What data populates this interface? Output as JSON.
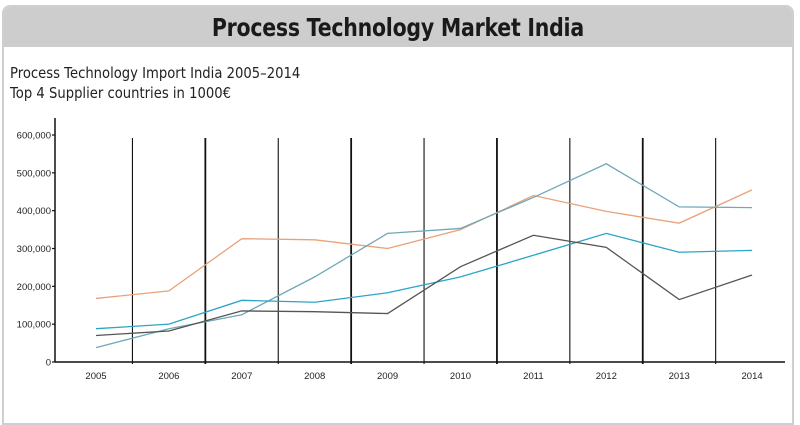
{
  "header": {
    "title": "Process Technology Market India"
  },
  "chart_data": {
    "type": "line",
    "title": "Process Technology Import India 2005–2014",
    "subtitle": "Top 4 Supplier countries in 1000€",
    "xlabel": "",
    "ylabel": "",
    "categories": [
      "2005",
      "2006",
      "2007",
      "2008",
      "2009",
      "2010",
      "2011",
      "2012",
      "2013",
      "2014"
    ],
    "yticks": [
      "0",
      "100,000",
      "200,000",
      "300,000",
      "400,000",
      "500,000",
      "600,000"
    ],
    "ylim": [
      0,
      600000
    ],
    "grid": "vertical separators between years",
    "legend": "none",
    "series": [
      {
        "color": "#e8a27a",
        "values": [
          168000,
          188000,
          326000,
          323000,
          300000,
          350000,
          440000,
          398000,
          367000,
          455000
        ]
      },
      {
        "color": "#6fa8b8",
        "values": [
          38000,
          88000,
          125000,
          225000,
          340000,
          353000,
          435000,
          524000,
          410000,
          408000
        ]
      },
      {
        "color": "#2aa5c8",
        "values": [
          88000,
          100000,
          163000,
          158000,
          183000,
          225000,
          282000,
          340000,
          290000,
          295000
        ]
      },
      {
        "color": "#555555",
        "values": [
          70000,
          82000,
          135000,
          133000,
          128000,
          252000,
          335000,
          303000,
          165000,
          230000
        ]
      }
    ]
  }
}
